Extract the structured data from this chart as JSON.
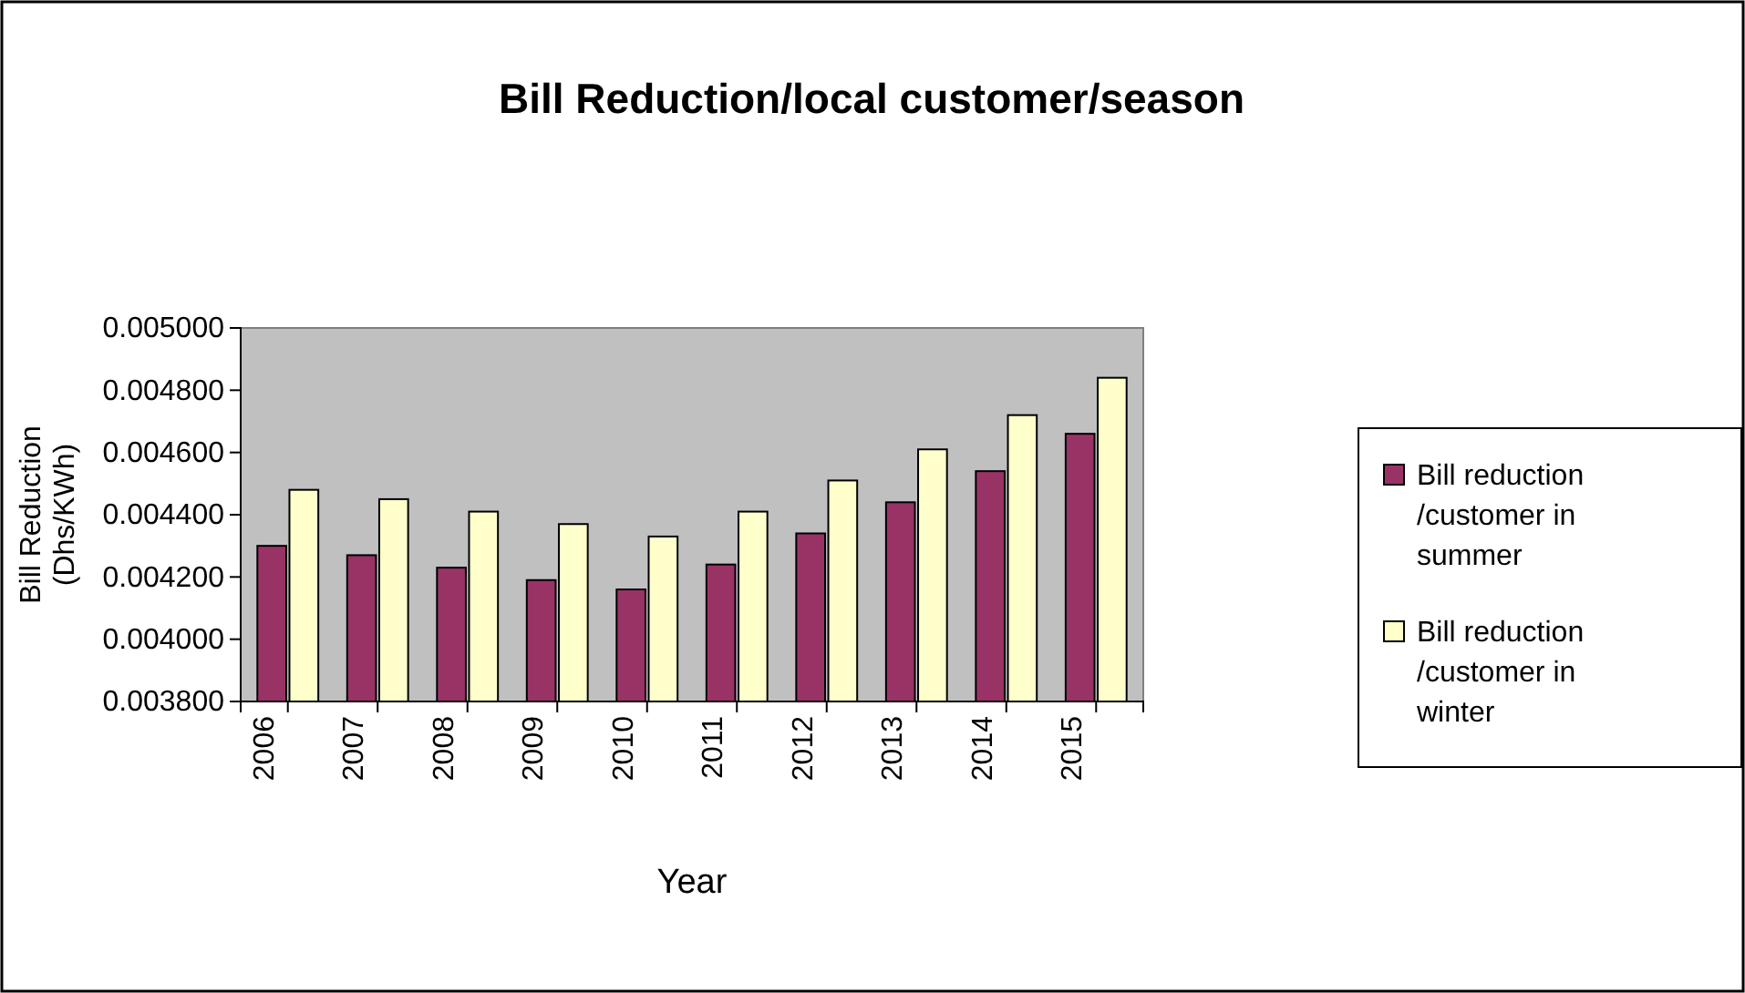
{
  "chart_data": {
    "type": "bar",
    "title": "Bill Reduction/local customer/season",
    "xlabel": "Year",
    "ylabel": "Bill Reduction\n(Dhs/KWh)",
    "categories": [
      "2006",
      "2007",
      "2008",
      "2009",
      "2010",
      "2011",
      "2012",
      "2013",
      "2014",
      "2015"
    ],
    "series": [
      {
        "name": "Bill reduction /customer in summer",
        "color": "#993366",
        "values": [
          0.0043,
          0.00427,
          0.00423,
          0.00419,
          0.00416,
          0.00424,
          0.00434,
          0.00444,
          0.00454,
          0.00466
        ]
      },
      {
        "name": "Bill reduction /customer in winter",
        "color": "#ffffcc",
        "values": [
          0.00448,
          0.00445,
          0.00441,
          0.00437,
          0.00433,
          0.00441,
          0.00451,
          0.00461,
          0.00472,
          0.00484
        ]
      }
    ],
    "ylim": [
      0.0038,
      0.005
    ],
    "yticks": [
      {
        "value": 0.0038,
        "label": "0.003800"
      },
      {
        "value": 0.004,
        "label": "0.004000"
      },
      {
        "value": 0.0042,
        "label": "0.004200"
      },
      {
        "value": 0.0044,
        "label": "0.004400"
      },
      {
        "value": 0.0046,
        "label": "0.004600"
      },
      {
        "value": 0.0048,
        "label": "0.004800"
      },
      {
        "value": 0.005,
        "label": "0.005000"
      }
    ],
    "legend": "right"
  }
}
